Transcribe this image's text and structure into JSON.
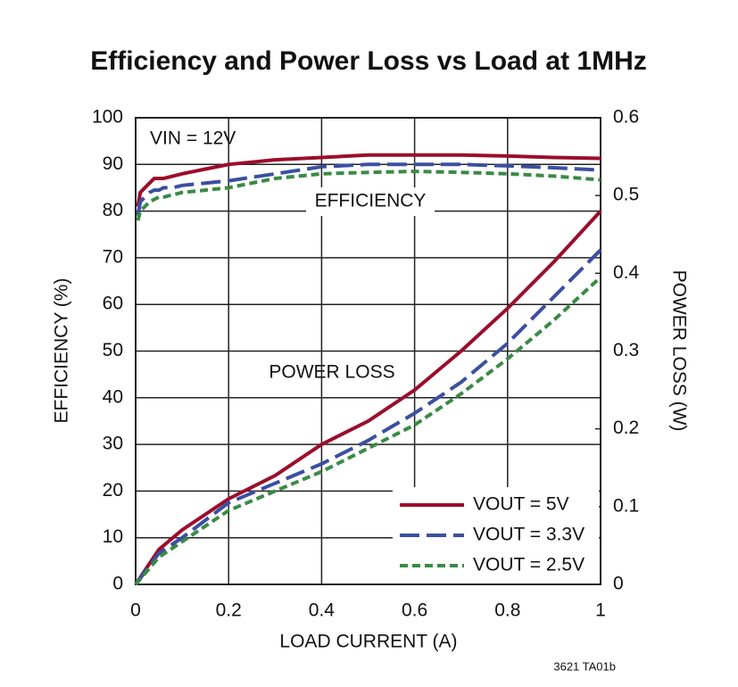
{
  "chart_data": {
    "type": "line",
    "title": "Efficiency and Power Loss vs Load at 1MHz",
    "xlabel": "LOAD CURRENT (A)",
    "ylabel": "EFFICIENCY (%)",
    "y2label": "POWER LOSS (W)",
    "annotations": [
      "VIN = 12V",
      "EFFICIENCY",
      "POWER LOSS"
    ],
    "footnote": "3621 TA01b",
    "xlim": [
      0,
      1
    ],
    "xticks": [
      0,
      0.2,
      0.4,
      0.6,
      0.8,
      1
    ],
    "ylim": [
      0,
      100
    ],
    "yticks": [
      0,
      10,
      20,
      30,
      40,
      50,
      60,
      70,
      80,
      90,
      100
    ],
    "y2lim": [
      0,
      0.6
    ],
    "y2ticks": [
      0,
      0.1,
      0.2,
      0.3,
      0.4,
      0.5,
      0.6
    ],
    "grid": true,
    "legend": "lower-right",
    "series": [
      {
        "name": "VOUT = 5V",
        "color": "#9b0d2b",
        "dash": "solid",
        "efficiency": {
          "x": [
            0.005,
            0.01,
            0.02,
            0.03,
            0.04,
            0.05,
            0.06,
            0.08,
            0.1,
            0.15,
            0.2,
            0.3,
            0.4,
            0.5,
            0.6,
            0.7,
            0.8,
            0.9,
            1.0
          ],
          "values": [
            81,
            84,
            85,
            86,
            87,
            87,
            87,
            87.5,
            88,
            89,
            90,
            91,
            91.5,
            92,
            92,
            92,
            91.8,
            91.5,
            91.3
          ]
        },
        "power_loss": {
          "axis": "y2",
          "x": [
            0,
            0.05,
            0.1,
            0.2,
            0.3,
            0.4,
            0.5,
            0.6,
            0.7,
            0.8,
            0.9,
            1.0
          ],
          "values": [
            0,
            0.045,
            0.07,
            0.11,
            0.14,
            0.18,
            0.21,
            0.25,
            0.3,
            0.355,
            0.415,
            0.48
          ]
        }
      },
      {
        "name": "VOUT = 3.3V",
        "color": "#3b4fa0",
        "dash": "long",
        "efficiency": {
          "x": [
            0.005,
            0.01,
            0.02,
            0.03,
            0.04,
            0.05,
            0.06,
            0.08,
            0.1,
            0.15,
            0.2,
            0.3,
            0.4,
            0.5,
            0.6,
            0.7,
            0.8,
            0.9,
            1.0
          ],
          "values": [
            79,
            82,
            83,
            84,
            84.5,
            84.5,
            85,
            85,
            85.5,
            86,
            86.5,
            88,
            89.5,
            90,
            90,
            90,
            89.7,
            89.3,
            88.8
          ]
        },
        "power_loss": {
          "axis": "y2",
          "x": [
            0,
            0.05,
            0.1,
            0.2,
            0.3,
            0.4,
            0.5,
            0.6,
            0.7,
            0.8,
            0.9,
            1.0
          ],
          "values": [
            0,
            0.04,
            0.06,
            0.105,
            0.13,
            0.155,
            0.185,
            0.22,
            0.26,
            0.31,
            0.37,
            0.43
          ]
        }
      },
      {
        "name": "VOUT = 2.5V",
        "color": "#3a8a45",
        "dash": "short",
        "efficiency": {
          "x": [
            0.005,
            0.01,
            0.02,
            0.03,
            0.04,
            0.05,
            0.06,
            0.08,
            0.1,
            0.15,
            0.2,
            0.3,
            0.4,
            0.5,
            0.6,
            0.7,
            0.8,
            0.9,
            1.0
          ],
          "values": [
            78,
            80,
            81,
            82,
            82.5,
            83,
            83,
            83.5,
            84,
            84.5,
            85,
            87,
            88,
            88.3,
            88.5,
            88.3,
            88,
            87.5,
            86.7
          ]
        },
        "power_loss": {
          "axis": "y2",
          "x": [
            0,
            0.05,
            0.1,
            0.2,
            0.3,
            0.4,
            0.5,
            0.6,
            0.7,
            0.8,
            0.9,
            1.0
          ],
          "values": [
            0,
            0.035,
            0.055,
            0.095,
            0.12,
            0.145,
            0.175,
            0.205,
            0.245,
            0.29,
            0.34,
            0.395
          ]
        }
      }
    ]
  }
}
